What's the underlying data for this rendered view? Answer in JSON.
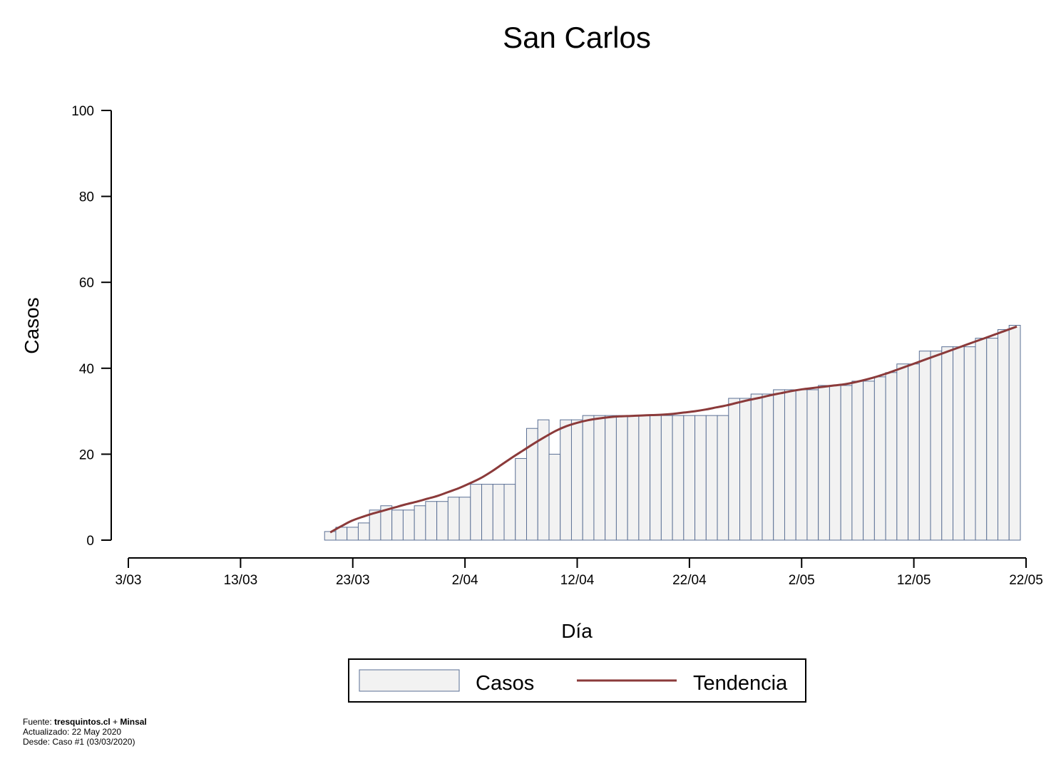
{
  "chart_data": {
    "type": "bar",
    "title": "San Carlos",
    "xlabel": "Día",
    "ylabel": "Casos",
    "ylim": [
      0,
      100
    ],
    "yticks": [
      0,
      20,
      40,
      60,
      80,
      100
    ],
    "x_tick_labels": [
      "3/03",
      "13/03",
      "23/03",
      "2/04",
      "12/04",
      "22/04",
      "2/05",
      "12/05",
      "22/05"
    ],
    "x_tick_days": [
      0,
      10,
      20,
      30,
      40,
      50,
      60,
      70,
      80
    ],
    "x_range_days": [
      0,
      80
    ],
    "first_bar_day": 17,
    "series": [
      {
        "name": "Casos",
        "type": "bar",
        "color": "#f2f2f2",
        "edge_color": "#5a6f94",
        "values": [
          2,
          3,
          3,
          4,
          7,
          8,
          7,
          7,
          8,
          9,
          9,
          10,
          10,
          13,
          13,
          13,
          13,
          19,
          26,
          28,
          20,
          28,
          28,
          29,
          29,
          29,
          29,
          29,
          29,
          29,
          29,
          29,
          29,
          29,
          29,
          29,
          33,
          33,
          34,
          34,
          35,
          35,
          35,
          35,
          36,
          36,
          36,
          37,
          37,
          38,
          39,
          41,
          41,
          44,
          44,
          45,
          45,
          45,
          47,
          47,
          49,
          50
        ]
      },
      {
        "name": "Tendencia",
        "type": "line",
        "color": "#8b3a3a",
        "values": [
          1.8,
          3.2,
          4.5,
          5.4,
          6.2,
          6.9,
          7.6,
          8.3,
          8.9,
          9.6,
          10.3,
          11.2,
          12.1,
          13.2,
          14.4,
          15.9,
          17.6,
          19.3,
          20.9,
          22.5,
          24.0,
          25.4,
          26.5,
          27.3,
          27.9,
          28.3,
          28.6,
          28.8,
          28.9,
          29.0,
          29.1,
          29.2,
          29.4,
          29.7,
          30.0,
          30.4,
          30.9,
          31.4,
          32.0,
          32.6,
          33.1,
          33.7,
          34.2,
          34.7,
          35.1,
          35.4,
          35.7,
          36.0,
          36.3,
          36.8,
          37.4,
          38.1,
          38.9,
          39.8,
          40.7,
          41.6,
          42.5,
          43.4,
          44.3,
          45.2,
          46.1,
          47.0,
          47.9,
          48.8,
          49.7
        ]
      }
    ],
    "legend": {
      "position": "bottom-center",
      "entries": [
        "Casos",
        "Tendencia"
      ]
    }
  },
  "footer": {
    "source_prefix": "Fuente: ",
    "source_site": "tresquintos.cl",
    "source_join": " + ",
    "source_org": "Minsal",
    "updated": "Actualizado: 22 May 2020",
    "since": "Desde: Caso #1  (03/03/2020)"
  }
}
